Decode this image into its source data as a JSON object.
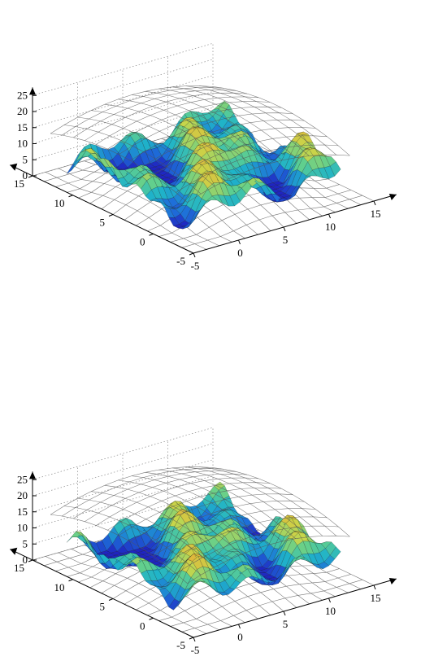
{
  "chart_data": [
    {
      "type": "surface",
      "title": "",
      "x_ticks": [
        "-5",
        "0",
        "5",
        "10",
        "15"
      ],
      "y_ticks": [
        "-5",
        "0",
        "5",
        "10",
        "15"
      ],
      "z_ticks": [
        "0",
        "5",
        "10",
        "15",
        "20",
        "25"
      ],
      "xlim": [
        -5,
        15
      ],
      "ylim": [
        -5,
        15
      ],
      "zlim": [
        0,
        25
      ],
      "grid": true,
      "colormap": [
        "#1f1fbf",
        "#1e6fd9",
        "#1fb3c9",
        "#5fcf8f",
        "#c8d64a",
        "#e0b43a",
        "#e8702a"
      ],
      "mesh_color": "#000000",
      "dome_peak": 20,
      "dome_edge": 13,
      "bowl_base": 0,
      "bowl_rise": 7
    },
    {
      "type": "surface",
      "title": "",
      "x_ticks": [
        "-5",
        "0",
        "5",
        "10",
        "15"
      ],
      "y_ticks": [
        "-5",
        "0",
        "5",
        "10",
        "15"
      ],
      "z_ticks": [
        "0",
        "5",
        "10",
        "15",
        "20",
        "25"
      ],
      "xlim": [
        -5,
        15
      ],
      "ylim": [
        -5,
        15
      ],
      "zlim": [
        0,
        25
      ],
      "grid": true,
      "colormap": [
        "#1f1fbf",
        "#1e6fd9",
        "#1fb3c9",
        "#5fcf8f",
        "#c8d64a",
        "#e0b43a",
        "#e8702a"
      ],
      "mesh_color": "#000000",
      "dome_peak": 21,
      "dome_edge": 14,
      "bowl_base": 0,
      "bowl_rise": 5
    }
  ]
}
